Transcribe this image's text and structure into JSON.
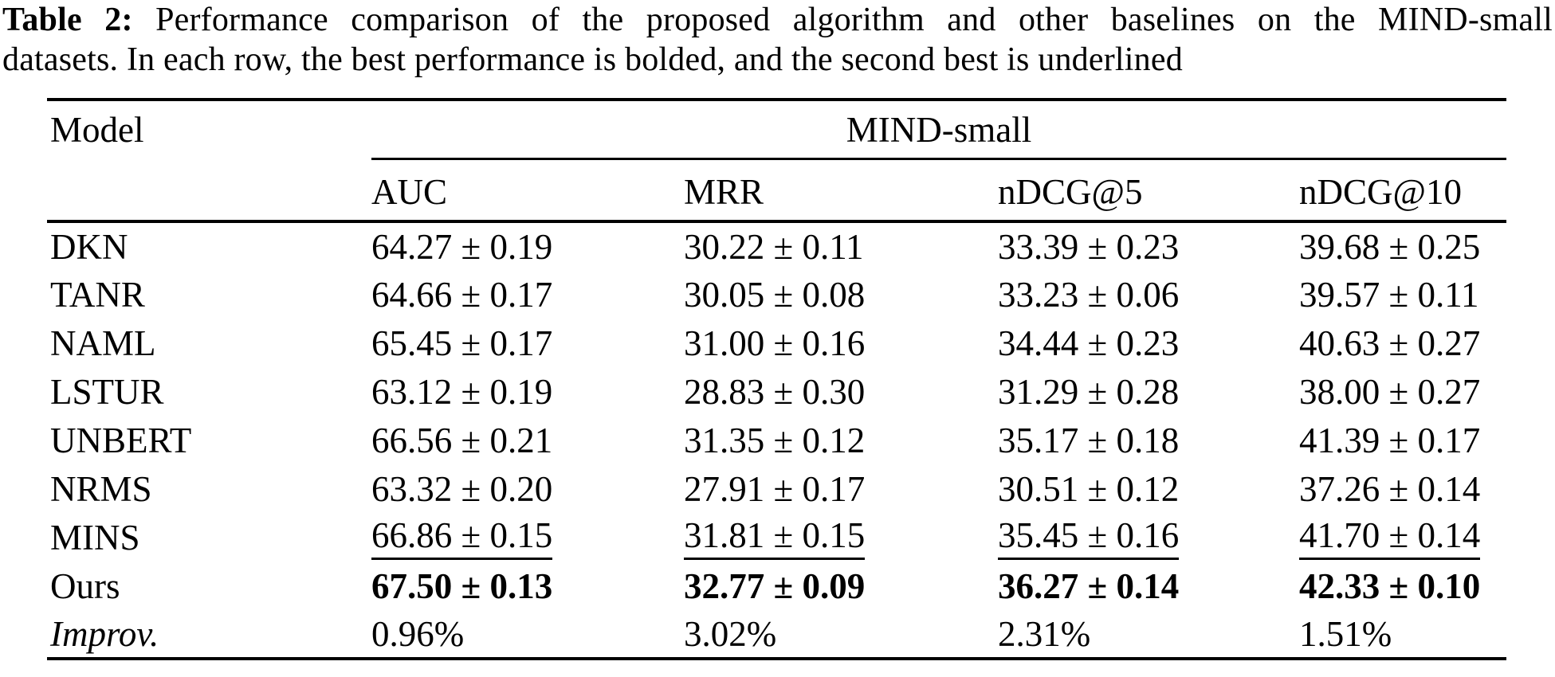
{
  "colors": {
    "text": "#000000",
    "background": "#ffffff",
    "rule": "#000000"
  },
  "caption": {
    "label": "Table 2:",
    "line1_rest": "Performance comparison of the proposed algorithm and other baselines on the MIND-small",
    "line2": "datasets. In each row, the best performance is bolded, and the second best is underlined"
  },
  "table": {
    "corner_header": "Model",
    "group_header": "MIND-small",
    "metric_headers": [
      "AUC",
      "MRR",
      "nDCG@5",
      "nDCG@10"
    ],
    "rows": [
      {
        "model": "DKN",
        "emphasis": "none",
        "values": [
          "64.27 ± 0.19",
          "30.22 ± 0.11",
          "33.39 ± 0.23",
          "39.68 ± 0.25"
        ]
      },
      {
        "model": "TANR",
        "emphasis": "none",
        "values": [
          "64.66 ± 0.17",
          "30.05 ± 0.08",
          "33.23 ± 0.06",
          "39.57 ± 0.11"
        ]
      },
      {
        "model": "NAML",
        "emphasis": "none",
        "values": [
          "65.45 ± 0.17",
          "31.00 ± 0.16",
          "34.44 ± 0.23",
          "40.63 ± 0.27"
        ]
      },
      {
        "model": "LSTUR",
        "emphasis": "none",
        "values": [
          "63.12 ± 0.19",
          "28.83 ± 0.30",
          "31.29 ± 0.28",
          "38.00 ± 0.27"
        ]
      },
      {
        "model": "UNBERT",
        "emphasis": "none",
        "values": [
          "66.56 ± 0.21",
          "31.35 ± 0.12",
          "35.17 ± 0.18",
          "41.39 ± 0.17"
        ]
      },
      {
        "model": "NRMS",
        "emphasis": "none",
        "values": [
          "63.32 ± 0.20",
          "27.91 ± 0.17",
          "30.51 ± 0.12",
          "37.26 ± 0.14"
        ]
      },
      {
        "model": "MINS",
        "emphasis": "underline",
        "values": [
          "66.86 ± 0.15",
          "31.81 ± 0.15",
          "35.45 ± 0.16",
          "41.70 ± 0.14"
        ]
      },
      {
        "model": "Ours",
        "emphasis": "bold",
        "values": [
          "67.50 ± 0.13",
          "32.77 ± 0.09",
          "36.27 ± 0.14",
          "42.33 ± 0.10"
        ]
      },
      {
        "model": "Improv.",
        "emphasis": "italic-label",
        "values": [
          "0.96%",
          "3.02%",
          "2.31%",
          "1.51%"
        ]
      }
    ]
  }
}
